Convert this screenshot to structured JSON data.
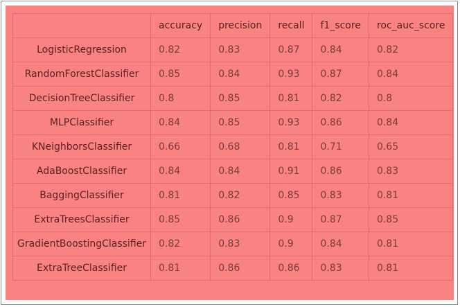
{
  "chart_data": {
    "type": "table",
    "columns": [
      "",
      "accuracy",
      "precision",
      "recall",
      "f1_score",
      "roc_auc_score"
    ],
    "rows": [
      {
        "model": "LogisticRegression",
        "values": [
          "0.82",
          "0.83",
          "0.87",
          "0.84",
          "0.82"
        ]
      },
      {
        "model": "RandomForestClassifier",
        "values": [
          "0.85",
          "0.84",
          "0.93",
          "0.87",
          "0.84"
        ]
      },
      {
        "model": "DecisionTreeClassifier",
        "values": [
          "0.8",
          "0.85",
          "0.81",
          "0.82",
          "0.8"
        ]
      },
      {
        "model": "MLPClassifier",
        "values": [
          "0.84",
          "0.85",
          "0.93",
          "0.86",
          "0.84"
        ]
      },
      {
        "model": "KNeighborsClassifier",
        "values": [
          "0.66",
          "0.68",
          "0.81",
          "0.71",
          "0.65"
        ]
      },
      {
        "model": "AdaBoostClassifier",
        "values": [
          "0.84",
          "0.84",
          "0.91",
          "0.86",
          "0.83"
        ]
      },
      {
        "model": "BaggingClassifier",
        "values": [
          "0.81",
          "0.82",
          "0.85",
          "0.83",
          "0.81"
        ]
      },
      {
        "model": "ExtraTreesClassifier",
        "values": [
          "0.85",
          "0.86",
          "0.9",
          "0.87",
          "0.85"
        ]
      },
      {
        "model": "GradientBoostingClassifier",
        "values": [
          "0.82",
          "0.83",
          "0.9",
          "0.84",
          "0.81"
        ]
      },
      {
        "model": "ExtraTreeClassifier",
        "values": [
          "0.81",
          "0.86",
          "0.86",
          "0.83",
          "0.81"
        ]
      }
    ]
  },
  "colors": {
    "panel_background": "#f98282",
    "cell_border": "#e26a6a",
    "text": "#5a1f1f"
  }
}
